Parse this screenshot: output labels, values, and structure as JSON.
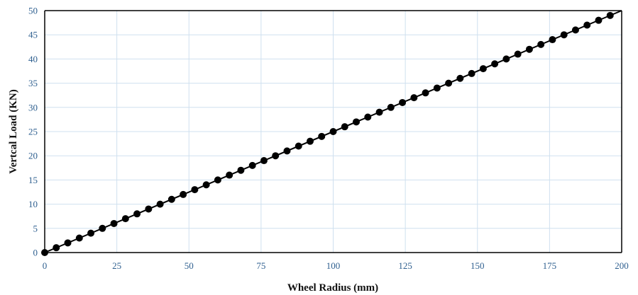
{
  "chart_data": {
    "type": "line",
    "title": "",
    "xlabel": "Wheel Radius (mm)",
    "ylabel": "Vertcal Load (KN)",
    "xlim": [
      0,
      200
    ],
    "ylim": [
      0,
      50
    ],
    "x_ticks": [
      "0",
      "25",
      "50",
      "75",
      "100",
      "125",
      "150",
      "175",
      "200"
    ],
    "y_ticks": [
      "0",
      "5",
      "10",
      "15",
      "20",
      "25",
      "30",
      "35",
      "40",
      "45",
      "50"
    ],
    "grid": true,
    "legend": "none",
    "series": [
      {
        "x": [
          0,
          4,
          8,
          12,
          16,
          20,
          24,
          28,
          32,
          36,
          40,
          44,
          48,
          52,
          56,
          60,
          64,
          68,
          72,
          76,
          80,
          84,
          88,
          92,
          96,
          100,
          104,
          108,
          112,
          116,
          120,
          124,
          128,
          132,
          136,
          140,
          144,
          148,
          152,
          156,
          160,
          164,
          168,
          172,
          176,
          180,
          184,
          188,
          192,
          196
        ],
        "y": [
          0,
          1,
          2,
          3,
          4,
          5,
          6,
          7,
          8,
          9,
          10,
          11,
          12,
          13,
          14,
          15,
          16,
          17,
          18,
          19,
          20,
          21,
          22,
          23,
          24,
          25,
          26,
          27,
          28,
          29,
          30,
          31,
          32,
          33,
          34,
          35,
          36,
          37,
          38,
          39,
          40,
          41,
          42,
          43,
          44,
          45,
          46,
          47,
          48,
          49
        ],
        "trendline": {
          "x": [
            0,
            200
          ],
          "y": [
            0,
            50
          ]
        }
      }
    ],
    "colors": {
      "grid": "#cfe0ef",
      "markers": "#000000",
      "line": "#000000",
      "ticks": "#2e5f8f"
    }
  }
}
